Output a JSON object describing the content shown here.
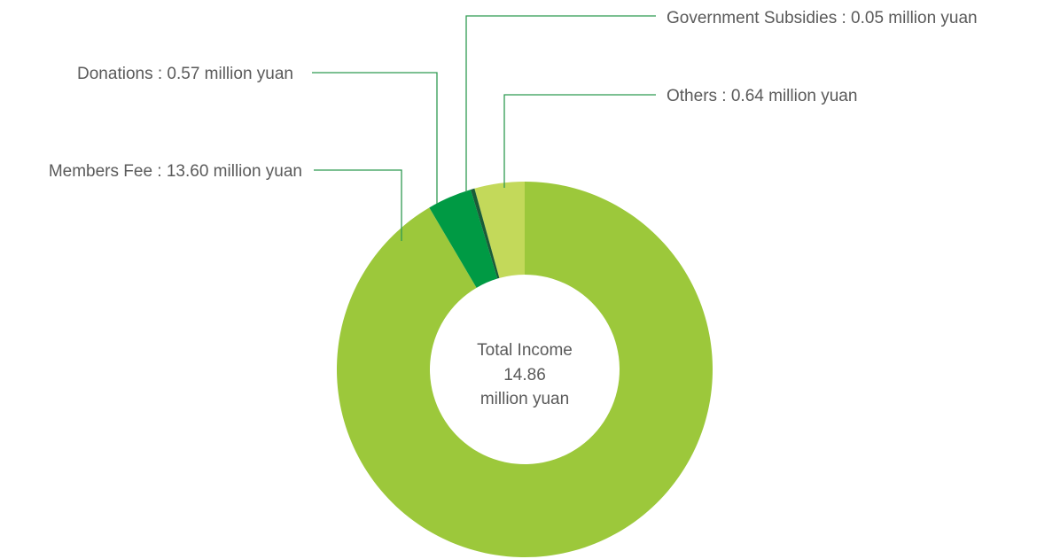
{
  "chart_data": {
    "type": "pie",
    "donut": true,
    "center_label": [
      "Total Income",
      "14.86",
      "million yuan"
    ],
    "slices": [
      {
        "name": "Others",
        "value": 0.64,
        "color": "#c3d95a",
        "label": "Others :  0.64 million yuan"
      },
      {
        "name": "Members Fee",
        "value": 13.6,
        "color": "#9cc83b",
        "label": "Members Fee : 13.60 million yuan"
      },
      {
        "name": "Donations",
        "value": 0.57,
        "color": "#009a44",
        "label": "Donations : 0.57 million yuan"
      },
      {
        "name": "Government Subsidies",
        "value": 0.05,
        "color": "#1a5c38",
        "label": "Government Subsidies : 0.05 million yuan"
      }
    ],
    "leader_line_color": "#2f9a52"
  }
}
